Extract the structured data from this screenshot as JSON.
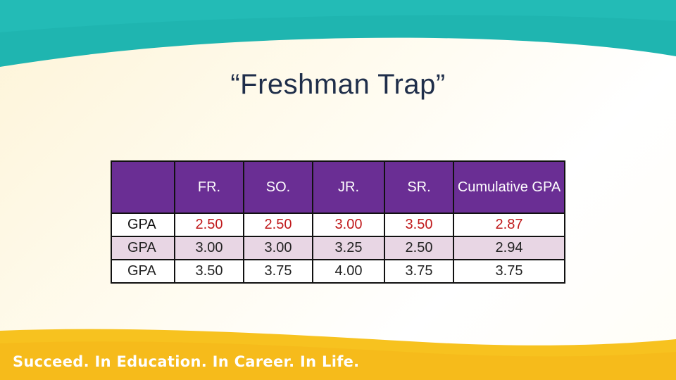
{
  "slide": {
    "title": "“Freshman Trap”",
    "tagline": "Succeed. In Education. In Career. In Life.",
    "colors": {
      "top_band": "#1fb5b0",
      "bottom_band": "#f7c21f",
      "header_fill": "#6a2e94",
      "highlight_value": "#c0191b",
      "row_tint": "#e8d6e4"
    }
  },
  "table": {
    "headers": [
      "",
      "FR.",
      "SO.",
      "JR.",
      "SR.",
      "Cumulative GPA"
    ],
    "rows": [
      [
        "GPA",
        "2.50",
        "2.50",
        "3.00",
        "3.50",
        "2.87"
      ],
      [
        "GPA",
        "3.00",
        "3.00",
        "3.25",
        "2.50",
        "2.94"
      ],
      [
        "GPA",
        "3.50",
        "3.75",
        "4.00",
        "3.75",
        "3.75"
      ]
    ]
  }
}
